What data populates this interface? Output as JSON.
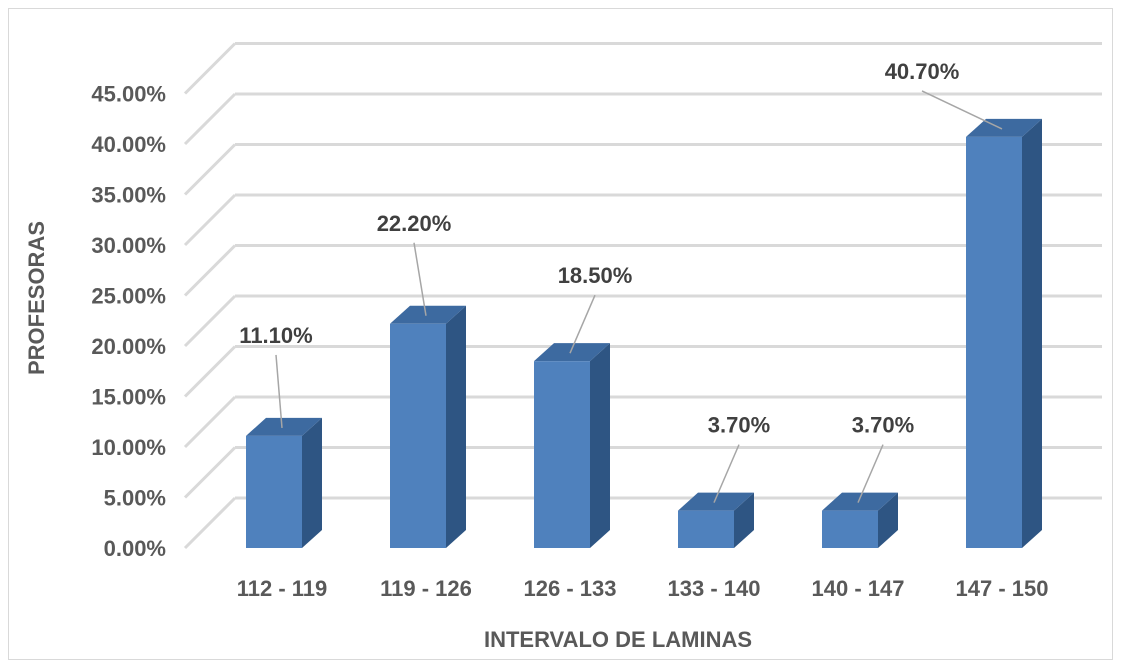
{
  "chart_data": {
    "type": "bar",
    "categories": [
      "112 - 119",
      "119 - 126",
      "126 - 133",
      "133 - 140",
      "140 - 147",
      "147 - 150"
    ],
    "values": [
      11.1,
      22.2,
      18.5,
      3.7,
      3.7,
      40.7
    ],
    "data_labels": [
      "11.10%",
      "22.20%",
      "18.50%",
      "3.70%",
      "3.70%",
      "40.70%"
    ],
    "yticks": [
      "0.00%",
      "5.00%",
      "10.00%",
      "15.00%",
      "20.00%",
      "25.00%",
      "30.00%",
      "35.00%",
      "40.00%",
      "45.00%"
    ],
    "ylim": [
      0,
      45
    ],
    "xlabel": "INTERVALO DE LAMINAS",
    "ylabel": "PROFESORAS",
    "grid": true,
    "legend": "none",
    "style": "3d-column",
    "colors": {
      "front": "#4f81bd",
      "side": "#2e5583",
      "top": "#3d6aa0",
      "grid": "#d9d9d9",
      "text": "#595959",
      "label": "#404040"
    }
  }
}
